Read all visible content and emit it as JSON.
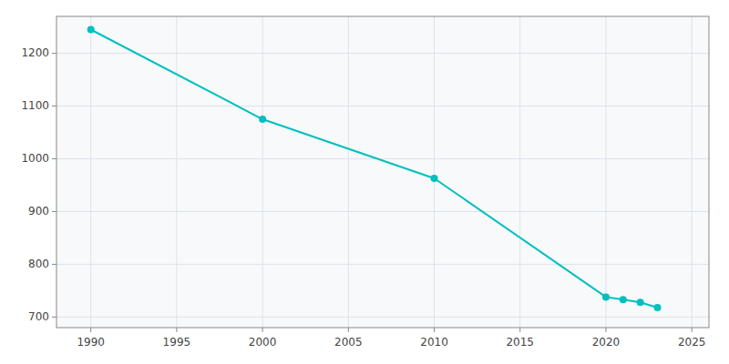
{
  "chart_data": {
    "type": "line",
    "x": [
      1990,
      2000,
      2010,
      2020,
      2021,
      2022,
      2023
    ],
    "values": [
      1245,
      1075,
      963,
      738,
      733,
      728,
      718
    ],
    "color": "#00BFBF",
    "marker": "circle",
    "xlim": [
      1988,
      2026
    ],
    "ylim": [
      680,
      1270
    ],
    "xticks": [
      1990,
      1995,
      2000,
      2005,
      2010,
      2015,
      2020,
      2025
    ],
    "yticks": [
      700,
      800,
      900,
      1000,
      1100,
      1200
    ],
    "grid": true
  }
}
